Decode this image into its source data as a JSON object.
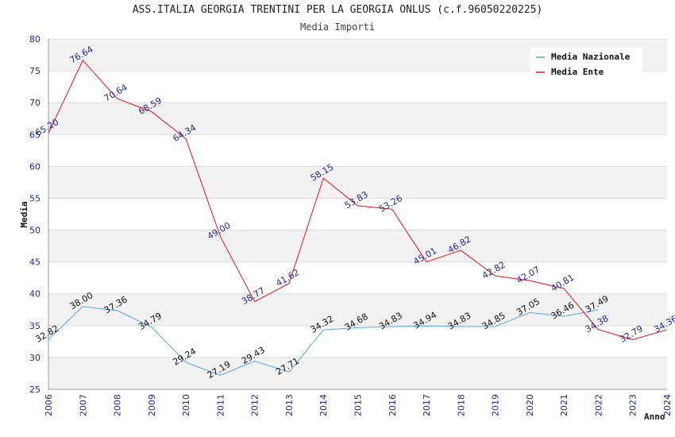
{
  "chart_data": {
    "type": "line",
    "title": "ASS.ITALIA GEORGIA TRENTINI PER LA GEORGIA ONLUS (c.f.96050220225)",
    "subtitle": "Media Importi",
    "xlabel": "Anno",
    "ylabel": "Media",
    "ylim": [
      25,
      80
    ],
    "yticks": [
      25,
      30,
      35,
      40,
      45,
      50,
      55,
      60,
      65,
      70,
      75,
      80
    ],
    "x": [
      "2006",
      "2007",
      "2008",
      "2009",
      "2010",
      "2011",
      "2012",
      "2013",
      "2014",
      "2015",
      "2016",
      "2017",
      "2018",
      "2019",
      "2020",
      "2021",
      "2022",
      "2023",
      "2024"
    ],
    "legend_position": "top-right",
    "grid": "horizontal bands",
    "series": [
      {
        "name": "Media Nazionale",
        "color": "#5aa8e0",
        "label_color": "#111111",
        "values": [
          32.82,
          38.0,
          37.36,
          34.79,
          29.24,
          27.19,
          29.43,
          27.71,
          34.32,
          34.68,
          34.83,
          34.94,
          34.83,
          34.85,
          37.05,
          36.46,
          37.49,
          null,
          null
        ],
        "labels": [
          "32.82",
          "38.00",
          "37.36",
          "34.79",
          "29.24",
          "27.19",
          "29.43",
          "27.71",
          "34.32",
          "34.68",
          "34.83",
          "34.94",
          "34.83",
          "34.85",
          "37.05",
          "36.46",
          "37.49",
          "",
          ""
        ]
      },
      {
        "name": "Media Ente",
        "color": "#e8141c",
        "label_color": "#1f2a9b",
        "values": [
          65.2,
          76.64,
          70.64,
          68.59,
          64.34,
          49.0,
          38.77,
          41.62,
          58.15,
          53.83,
          53.26,
          45.01,
          46.82,
          42.82,
          42.07,
          40.81,
          34.38,
          32.79,
          34.36
        ],
        "labels": [
          "65.20",
          "76.64",
          "70.64",
          "68.59",
          "64.34",
          "49.00",
          "38.77",
          "41.62",
          "58.15",
          "53.83",
          "53.26",
          "45.01",
          "46.82",
          "42.82",
          "42.07",
          "40.81",
          "34.38",
          "32.79",
          "34.36"
        ]
      }
    ]
  }
}
